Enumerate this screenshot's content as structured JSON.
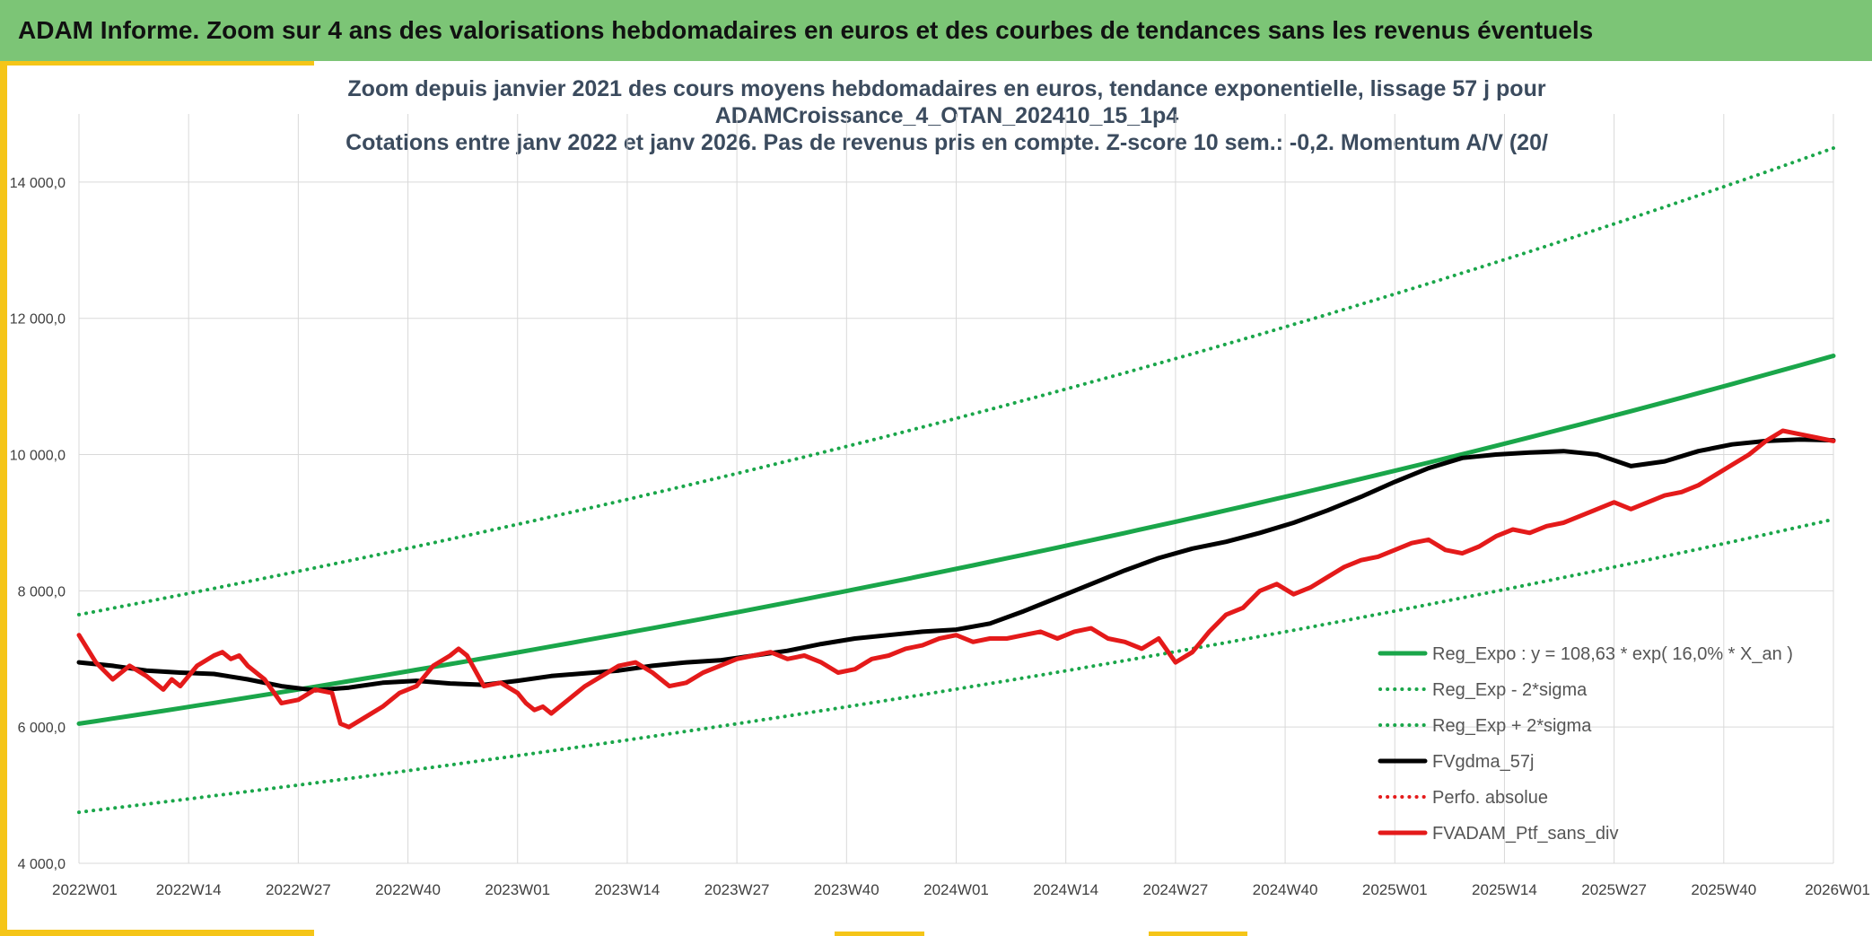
{
  "header": {
    "title": "ADAM Informe. Zoom sur 4 ans des valorisations hebdomadaires en euros et des courbes de tendances sans les revenus éventuels"
  },
  "colors": {
    "header_bg": "#7cc576",
    "frame_accent": "#f5c518",
    "reg_expo": "#1aa64a",
    "gdma": "#000000",
    "portfolio": "#e41a1a",
    "perfo": "#e41a1a",
    "grid": "#d9d9d9"
  },
  "chart_data": {
    "type": "line",
    "title_lines": [
      "Zoom depuis janvier 2021 des cours moyens hebdomadaires en euros, tendance exponentielle, lissage 57 j pour",
      "ADAMCroissance_4_OTAN_202410_15_1p4",
      "Cotations entre janv 2022 et janv 2026. Pas de revenus pris en compte. Z-score 10 sem.: -0,2. Momentum A/V (20/"
    ],
    "x_range": [
      0,
      208
    ],
    "x_ticks": [
      {
        "x": 0,
        "label": "2022W01"
      },
      {
        "x": 13,
        "label": "2022W14"
      },
      {
        "x": 26,
        "label": "2022W27"
      },
      {
        "x": 39,
        "label": "2022W40"
      },
      {
        "x": 52,
        "label": "2023W01"
      },
      {
        "x": 65,
        "label": "2023W14"
      },
      {
        "x": 78,
        "label": "2023W27"
      },
      {
        "x": 91,
        "label": "2023W40"
      },
      {
        "x": 104,
        "label": "2024W01"
      },
      {
        "x": 117,
        "label": "2024W14"
      },
      {
        "x": 130,
        "label": "2024W27"
      },
      {
        "x": 143,
        "label": "2024W40"
      },
      {
        "x": 156,
        "label": "2025W01"
      },
      {
        "x": 169,
        "label": "2025W14"
      },
      {
        "x": 182,
        "label": "2025W27"
      },
      {
        "x": 195,
        "label": "2025W40"
      },
      {
        "x": 208,
        "label": "2026W01"
      }
    ],
    "y_range": [
      4000,
      15000
    ],
    "y_ticks": [
      {
        "v": 4000,
        "label": "4 000,0"
      },
      {
        "v": 6000,
        "label": "6 000,0"
      },
      {
        "v": 8000,
        "label": "8 000,0"
      },
      {
        "v": 10000,
        "label": "10 000,0"
      },
      {
        "v": 12000,
        "label": "12 000,0"
      },
      {
        "v": 14000,
        "label": "14 000,0"
      }
    ],
    "series": [
      {
        "name": "Reg_Expo : y = 108,63 * exp( 16,0% *  X_an )",
        "style": "solid-green",
        "start": 6050,
        "end": 11450
      },
      {
        "name": "Reg_Exp - 2*sigma",
        "style": "dotted-green",
        "start": 4750,
        "end": 9050
      },
      {
        "name": "Reg_Exp + 2*sigma",
        "style": "dotted-green",
        "start": 7650,
        "end": 14500
      },
      {
        "name": "FVgdma_57j",
        "style": "solid-black",
        "points": [
          [
            0,
            6950
          ],
          [
            4,
            6900
          ],
          [
            8,
            6830
          ],
          [
            12,
            6800
          ],
          [
            16,
            6780
          ],
          [
            20,
            6700
          ],
          [
            24,
            6600
          ],
          [
            28,
            6540
          ],
          [
            32,
            6580
          ],
          [
            36,
            6650
          ],
          [
            40,
            6680
          ],
          [
            44,
            6640
          ],
          [
            48,
            6620
          ],
          [
            52,
            6680
          ],
          [
            56,
            6750
          ],
          [
            60,
            6790
          ],
          [
            64,
            6830
          ],
          [
            68,
            6900
          ],
          [
            72,
            6950
          ],
          [
            76,
            6980
          ],
          [
            80,
            7050
          ],
          [
            84,
            7120
          ],
          [
            88,
            7220
          ],
          [
            92,
            7300
          ],
          [
            96,
            7350
          ],
          [
            100,
            7400
          ],
          [
            104,
            7430
          ],
          [
            108,
            7520
          ],
          [
            112,
            7700
          ],
          [
            116,
            7900
          ],
          [
            120,
            8100
          ],
          [
            124,
            8300
          ],
          [
            128,
            8480
          ],
          [
            132,
            8620
          ],
          [
            136,
            8720
          ],
          [
            140,
            8850
          ],
          [
            144,
            9000
          ],
          [
            148,
            9180
          ],
          [
            152,
            9380
          ],
          [
            156,
            9600
          ],
          [
            160,
            9800
          ],
          [
            164,
            9950
          ],
          [
            168,
            10000
          ],
          [
            172,
            10030
          ],
          [
            176,
            10050
          ],
          [
            180,
            10000
          ],
          [
            184,
            9830
          ],
          [
            188,
            9900
          ],
          [
            192,
            10050
          ],
          [
            196,
            10150
          ],
          [
            200,
            10200
          ],
          [
            204,
            10220
          ],
          [
            208,
            10210
          ]
        ]
      },
      {
        "name": "Perfo. absolue",
        "style": "dotted-red"
      },
      {
        "name": "FVADAM_Ptf_sans_div",
        "style": "solid-red",
        "points": [
          [
            0,
            7350
          ],
          [
            2,
            6950
          ],
          [
            4,
            6700
          ],
          [
            6,
            6900
          ],
          [
            8,
            6750
          ],
          [
            10,
            6550
          ],
          [
            11,
            6700
          ],
          [
            12,
            6600
          ],
          [
            14,
            6900
          ],
          [
            16,
            7050
          ],
          [
            17,
            7100
          ],
          [
            18,
            7000
          ],
          [
            19,
            7050
          ],
          [
            20,
            6900
          ],
          [
            22,
            6700
          ],
          [
            24,
            6350
          ],
          [
            26,
            6400
          ],
          [
            28,
            6550
          ],
          [
            30,
            6500
          ],
          [
            31,
            6050
          ],
          [
            32,
            6000
          ],
          [
            34,
            6150
          ],
          [
            36,
            6300
          ],
          [
            38,
            6500
          ],
          [
            40,
            6600
          ],
          [
            42,
            6900
          ],
          [
            44,
            7050
          ],
          [
            45,
            7150
          ],
          [
            46,
            7050
          ],
          [
            48,
            6600
          ],
          [
            50,
            6650
          ],
          [
            52,
            6500
          ],
          [
            53,
            6350
          ],
          [
            54,
            6250
          ],
          [
            55,
            6300
          ],
          [
            56,
            6200
          ],
          [
            58,
            6400
          ],
          [
            60,
            6600
          ],
          [
            62,
            6750
          ],
          [
            64,
            6900
          ],
          [
            66,
            6950
          ],
          [
            68,
            6800
          ],
          [
            70,
            6600
          ],
          [
            72,
            6650
          ],
          [
            74,
            6800
          ],
          [
            76,
            6900
          ],
          [
            78,
            7000
          ],
          [
            80,
            7050
          ],
          [
            82,
            7100
          ],
          [
            84,
            7000
          ],
          [
            86,
            7050
          ],
          [
            88,
            6950
          ],
          [
            90,
            6800
          ],
          [
            92,
            6850
          ],
          [
            94,
            7000
          ],
          [
            96,
            7050
          ],
          [
            98,
            7150
          ],
          [
            100,
            7200
          ],
          [
            102,
            7300
          ],
          [
            104,
            7350
          ],
          [
            106,
            7250
          ],
          [
            108,
            7300
          ],
          [
            110,
            7300
          ],
          [
            112,
            7350
          ],
          [
            114,
            7400
          ],
          [
            116,
            7300
          ],
          [
            118,
            7400
          ],
          [
            120,
            7450
          ],
          [
            122,
            7300
          ],
          [
            124,
            7250
          ],
          [
            126,
            7150
          ],
          [
            128,
            7300
          ],
          [
            130,
            6950
          ],
          [
            132,
            7100
          ],
          [
            134,
            7400
          ],
          [
            136,
            7650
          ],
          [
            138,
            7750
          ],
          [
            140,
            8000
          ],
          [
            142,
            8100
          ],
          [
            144,
            7950
          ],
          [
            146,
            8050
          ],
          [
            148,
            8200
          ],
          [
            150,
            8350
          ],
          [
            152,
            8450
          ],
          [
            154,
            8500
          ],
          [
            156,
            8600
          ],
          [
            158,
            8700
          ],
          [
            160,
            8750
          ],
          [
            162,
            8600
          ],
          [
            164,
            8550
          ],
          [
            166,
            8650
          ],
          [
            168,
            8800
          ],
          [
            170,
            8900
          ],
          [
            172,
            8850
          ],
          [
            174,
            8950
          ],
          [
            176,
            9000
          ],
          [
            178,
            9100
          ],
          [
            180,
            9200
          ],
          [
            182,
            9300
          ],
          [
            184,
            9200
          ],
          [
            186,
            9300
          ],
          [
            188,
            9400
          ],
          [
            190,
            9450
          ],
          [
            192,
            9550
          ],
          [
            194,
            9700
          ],
          [
            196,
            9850
          ],
          [
            198,
            10000
          ],
          [
            200,
            10200
          ],
          [
            202,
            10350
          ],
          [
            204,
            10300
          ],
          [
            206,
            10250
          ],
          [
            208,
            10200
          ]
        ]
      }
    ],
    "legend_position": "bottom-right"
  }
}
